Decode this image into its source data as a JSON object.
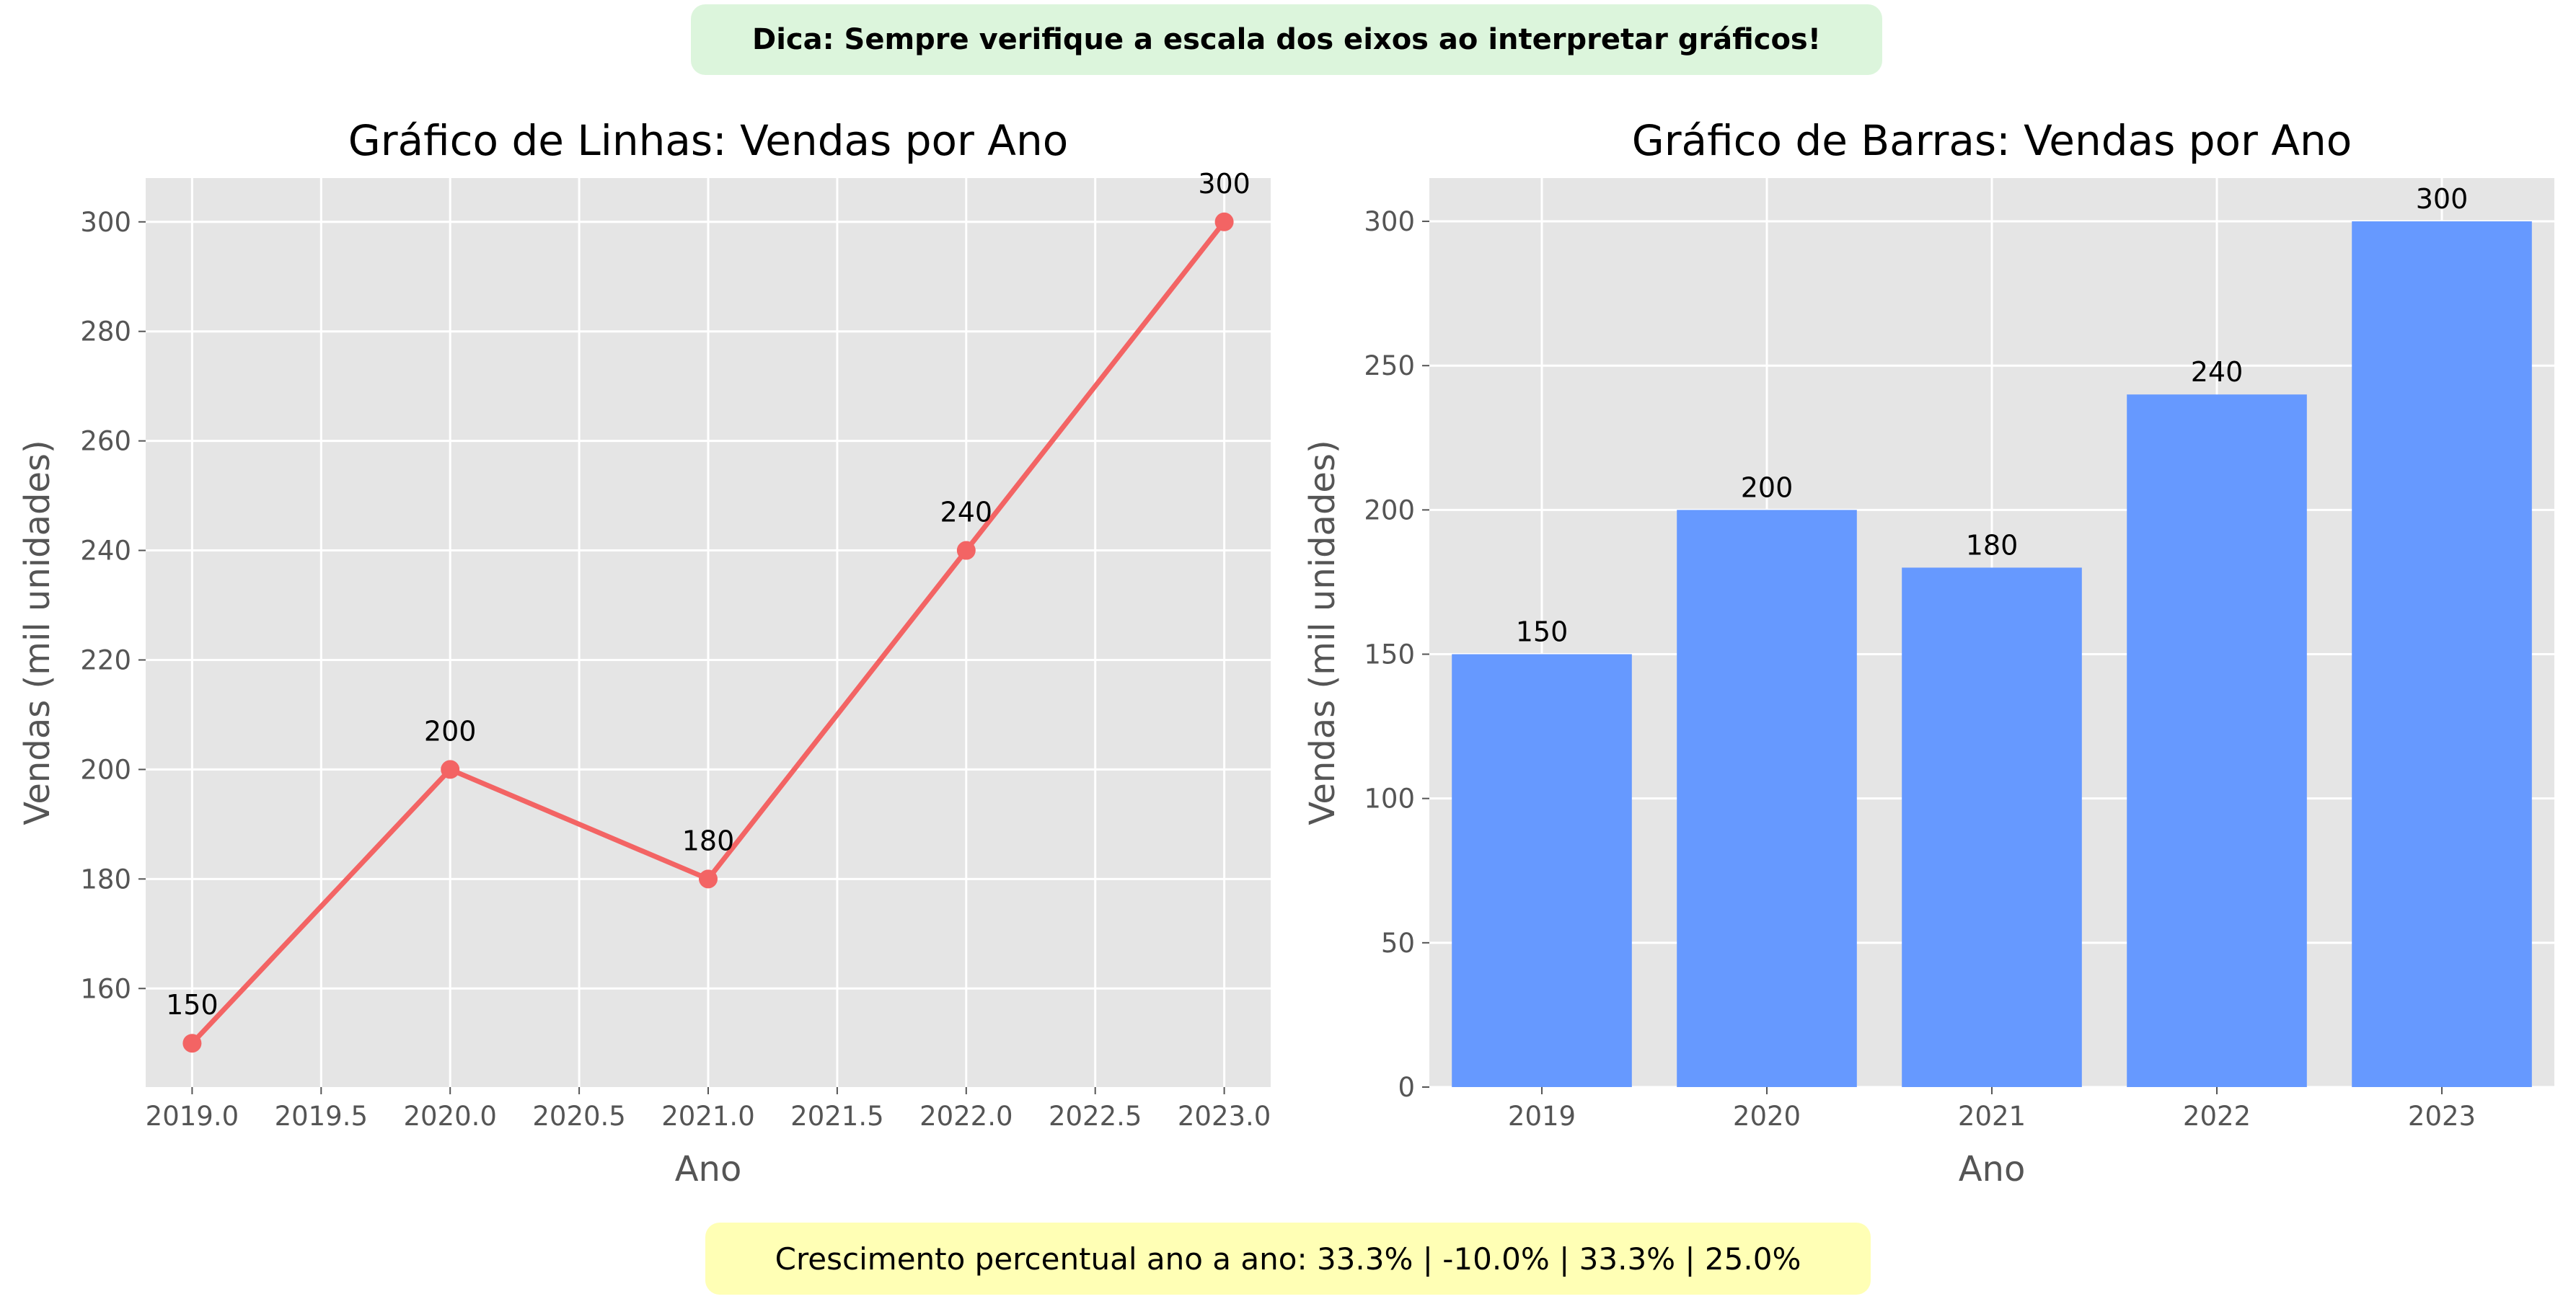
{
  "tip": "Dica: Sempre verifique a escala dos eixos ao interpretar gráficos!",
  "growth_text": "Crescimento percentual ano a ano: 33.3% | -10.0% | 33.3% | 25.0%",
  "colors": {
    "line": "#f36464",
    "bar": "#6699ff",
    "panel": "#e5e5e5",
    "grid": "#ffffff"
  },
  "chart_data": [
    {
      "type": "line",
      "title": "Gráfico de Linhas: Vendas por Ano",
      "xlabel": "Ano",
      "ylabel": "Vendas (mil unidades)",
      "x": [
        2019,
        2020,
        2021,
        2022,
        2023
      ],
      "values": [
        150,
        200,
        180,
        240,
        300
      ],
      "xlim": [
        2018.82,
        2023.18
      ],
      "ylim": [
        142,
        308
      ],
      "xticks": [
        "2019.0",
        "2019.5",
        "2020.0",
        "2020.5",
        "2021.0",
        "2021.5",
        "2022.0",
        "2022.5",
        "2023.0"
      ],
      "yticks": [
        160,
        180,
        200,
        220,
        240,
        260,
        280,
        300
      ],
      "grid": true,
      "data_labels": [
        "150",
        "200",
        "180",
        "240",
        "300"
      ]
    },
    {
      "type": "bar",
      "title": "Gráfico de Barras: Vendas por Ano",
      "xlabel": "Ano",
      "ylabel": "Vendas (mil unidades)",
      "categories": [
        "2019",
        "2020",
        "2021",
        "2022",
        "2023"
      ],
      "values": [
        150,
        200,
        180,
        240,
        300
      ],
      "ylim": [
        0,
        315
      ],
      "yticks": [
        0,
        50,
        100,
        150,
        200,
        250,
        300
      ],
      "grid": true,
      "data_labels": [
        "150",
        "200",
        "180",
        "240",
        "300"
      ]
    }
  ]
}
